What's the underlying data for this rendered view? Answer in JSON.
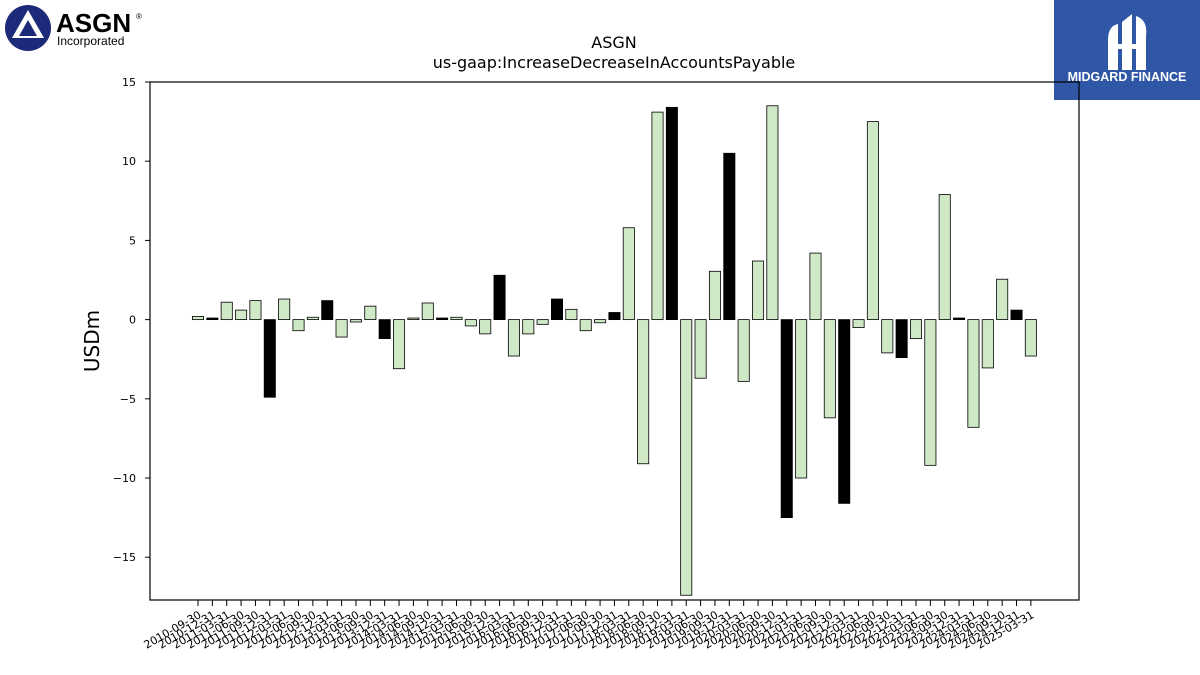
{
  "brand_left": {
    "name": "ASGN",
    "registered": "®",
    "sub": "Incorporated"
  },
  "brand_right": {
    "name": "MIDGARD FINANCE"
  },
  "colors": {
    "positive_fill": "#cfe8c6",
    "negative_fill": "#000000",
    "bar_stroke": "#000000",
    "brand_right_bg": "#2f57a6",
    "brand_left": "#1d2a7a"
  },
  "chart_data": {
    "type": "bar",
    "title": "ASGN",
    "subtitle": "us-gaap:IncreaseDecreaseInAccountsPayable",
    "xlabel": "",
    "ylabel": "USDm",
    "ylim": [
      -17.7,
      15
    ],
    "yticks": [
      -15,
      -10,
      -5,
      0,
      5,
      10,
      15
    ],
    "ytick_labels": [
      "−15",
      "−10",
      "−5",
      "0",
      "5",
      "10",
      "15"
    ],
    "grid": false,
    "categories": [
      "2010-09-30",
      "2010-12-31",
      "2011-03-31",
      "2011-06-30",
      "2011-09-30",
      "2011-12-31",
      "2012-03-31",
      "2012-06-30",
      "2012-09-30",
      "2012-12-31",
      "2013-03-31",
      "2013-06-30",
      "2013-09-30",
      "2013-12-31",
      "2014-03-31",
      "2014-06-30",
      "2014-09-30",
      "2014-12-31",
      "2015-03-31",
      "2015-06-30",
      "2015-09-30",
      "2015-12-31",
      "2016-03-31",
      "2016-06-30",
      "2016-09-30",
      "2016-12-31",
      "2017-03-31",
      "2017-06-30",
      "2017-09-30",
      "2017-12-31",
      "2018-03-31",
      "2018-06-30",
      "2018-09-30",
      "2018-12-31",
      "2019-03-31",
      "2019-06-30",
      "2019-09-30",
      "2019-12-31",
      "2020-03-31",
      "2020-06-30",
      "2020-09-30",
      "2020-12-31",
      "2021-03-31",
      "2021-06-30",
      "2021-09-30",
      "2021-12-31",
      "2022-03-31",
      "2022-06-30",
      "2022-09-30",
      "2022-12-31",
      "2023-03-31",
      "2023-06-30",
      "2023-09-30",
      "2023-12-31",
      "2024-03-31",
      "2024-06-30",
      "2024-09-30",
      "2024-12-31",
      "2025-03-31"
    ],
    "values": [
      0.2,
      0.1,
      1.1,
      0.6,
      1.2,
      -4.9,
      1.3,
      -0.7,
      0.15,
      1.2,
      -1.1,
      -0.15,
      0.85,
      -1.2,
      -3.1,
      0.1,
      1.05,
      0.1,
      0.15,
      -0.4,
      -0.9,
      2.8,
      -2.3,
      -0.9,
      -0.3,
      1.3,
      0.65,
      -0.7,
      -0.2,
      0.45,
      5.8,
      -9.1,
      13.1,
      13.4,
      -17.4,
      -3.7,
      3.05,
      10.5,
      -3.9,
      3.7,
      13.5,
      -12.5,
      -10.0,
      4.2,
      -6.2,
      -11.6,
      -0.5,
      12.5,
      -2.1,
      -2.4,
      -1.2,
      -9.2,
      7.9,
      0.1,
      -6.8,
      -3.05,
      2.55,
      0.6,
      -2.3
    ],
    "dark_bars": [
      false,
      true,
      false,
      false,
      false,
      true,
      false,
      false,
      false,
      true,
      false,
      false,
      false,
      true,
      false,
      false,
      false,
      true,
      false,
      false,
      false,
      true,
      false,
      false,
      false,
      true,
      false,
      false,
      false,
      true,
      false,
      false,
      false,
      true,
      false,
      false,
      false,
      true,
      false,
      false,
      false,
      true,
      false,
      false,
      false,
      true,
      false,
      false,
      false,
      true,
      false,
      false,
      false,
      true,
      false,
      false,
      false,
      true,
      false
    ]
  }
}
